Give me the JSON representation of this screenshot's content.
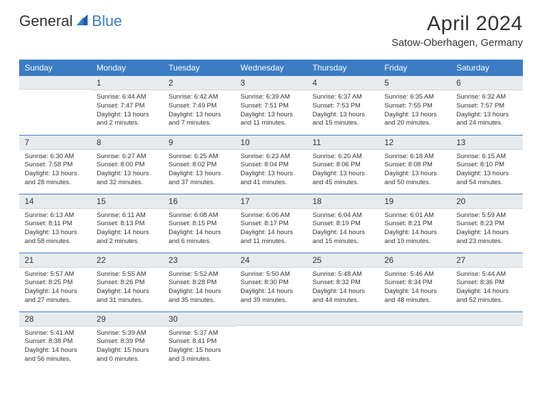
{
  "logo": {
    "part1": "General",
    "part2": "Blue"
  },
  "title": "April 2024",
  "location": "Satow-Oberhagen, Germany",
  "colors": {
    "header_bg": "#3b7dc4",
    "header_text": "#ffffff",
    "daynum_bg": "#e8ebed",
    "row_border": "#3b7dc4",
    "text": "#333333"
  },
  "weekdays": [
    "Sunday",
    "Monday",
    "Tuesday",
    "Wednesday",
    "Thursday",
    "Friday",
    "Saturday"
  ],
  "weeks": [
    [
      null,
      {
        "n": "1",
        "sunrise": "6:44 AM",
        "sunset": "7:47 PM",
        "daylight": "13 hours and 2 minutes."
      },
      {
        "n": "2",
        "sunrise": "6:42 AM",
        "sunset": "7:49 PM",
        "daylight": "13 hours and 7 minutes."
      },
      {
        "n": "3",
        "sunrise": "6:39 AM",
        "sunset": "7:51 PM",
        "daylight": "13 hours and 11 minutes."
      },
      {
        "n": "4",
        "sunrise": "6:37 AM",
        "sunset": "7:53 PM",
        "daylight": "13 hours and 15 minutes."
      },
      {
        "n": "5",
        "sunrise": "6:35 AM",
        "sunset": "7:55 PM",
        "daylight": "13 hours and 20 minutes."
      },
      {
        "n": "6",
        "sunrise": "6:32 AM",
        "sunset": "7:57 PM",
        "daylight": "13 hours and 24 minutes."
      }
    ],
    [
      {
        "n": "7",
        "sunrise": "6:30 AM",
        "sunset": "7:58 PM",
        "daylight": "13 hours and 28 minutes."
      },
      {
        "n": "8",
        "sunrise": "6:27 AM",
        "sunset": "8:00 PM",
        "daylight": "13 hours and 32 minutes."
      },
      {
        "n": "9",
        "sunrise": "6:25 AM",
        "sunset": "8:02 PM",
        "daylight": "13 hours and 37 minutes."
      },
      {
        "n": "10",
        "sunrise": "6:23 AM",
        "sunset": "8:04 PM",
        "daylight": "13 hours and 41 minutes."
      },
      {
        "n": "11",
        "sunrise": "6:20 AM",
        "sunset": "8:06 PM",
        "daylight": "13 hours and 45 minutes."
      },
      {
        "n": "12",
        "sunrise": "6:18 AM",
        "sunset": "8:08 PM",
        "daylight": "13 hours and 50 minutes."
      },
      {
        "n": "13",
        "sunrise": "6:15 AM",
        "sunset": "8:10 PM",
        "daylight": "13 hours and 54 minutes."
      }
    ],
    [
      {
        "n": "14",
        "sunrise": "6:13 AM",
        "sunset": "8:11 PM",
        "daylight": "13 hours and 58 minutes."
      },
      {
        "n": "15",
        "sunrise": "6:11 AM",
        "sunset": "8:13 PM",
        "daylight": "14 hours and 2 minutes."
      },
      {
        "n": "16",
        "sunrise": "6:08 AM",
        "sunset": "8:15 PM",
        "daylight": "14 hours and 6 minutes."
      },
      {
        "n": "17",
        "sunrise": "6:06 AM",
        "sunset": "8:17 PM",
        "daylight": "14 hours and 11 minutes."
      },
      {
        "n": "18",
        "sunrise": "6:04 AM",
        "sunset": "8:19 PM",
        "daylight": "14 hours and 15 minutes."
      },
      {
        "n": "19",
        "sunrise": "6:01 AM",
        "sunset": "8:21 PM",
        "daylight": "14 hours and 19 minutes."
      },
      {
        "n": "20",
        "sunrise": "5:59 AM",
        "sunset": "8:23 PM",
        "daylight": "14 hours and 23 minutes."
      }
    ],
    [
      {
        "n": "21",
        "sunrise": "5:57 AM",
        "sunset": "8:25 PM",
        "daylight": "14 hours and 27 minutes."
      },
      {
        "n": "22",
        "sunrise": "5:55 AM",
        "sunset": "8:26 PM",
        "daylight": "14 hours and 31 minutes."
      },
      {
        "n": "23",
        "sunrise": "5:52 AM",
        "sunset": "8:28 PM",
        "daylight": "14 hours and 35 minutes."
      },
      {
        "n": "24",
        "sunrise": "5:50 AM",
        "sunset": "8:30 PM",
        "daylight": "14 hours and 39 minutes."
      },
      {
        "n": "25",
        "sunrise": "5:48 AM",
        "sunset": "8:32 PM",
        "daylight": "14 hours and 44 minutes."
      },
      {
        "n": "26",
        "sunrise": "5:46 AM",
        "sunset": "8:34 PM",
        "daylight": "14 hours and 48 minutes."
      },
      {
        "n": "27",
        "sunrise": "5:44 AM",
        "sunset": "8:36 PM",
        "daylight": "14 hours and 52 minutes."
      }
    ],
    [
      {
        "n": "28",
        "sunrise": "5:41 AM",
        "sunset": "8:38 PM",
        "daylight": "14 hours and 56 minutes."
      },
      {
        "n": "29",
        "sunrise": "5:39 AM",
        "sunset": "8:39 PM",
        "daylight": "15 hours and 0 minutes."
      },
      {
        "n": "30",
        "sunrise": "5:37 AM",
        "sunset": "8:41 PM",
        "daylight": "15 hours and 3 minutes."
      },
      null,
      null,
      null,
      null
    ]
  ],
  "labels": {
    "sunrise": "Sunrise:",
    "sunset": "Sunset:",
    "daylight": "Daylight:"
  }
}
